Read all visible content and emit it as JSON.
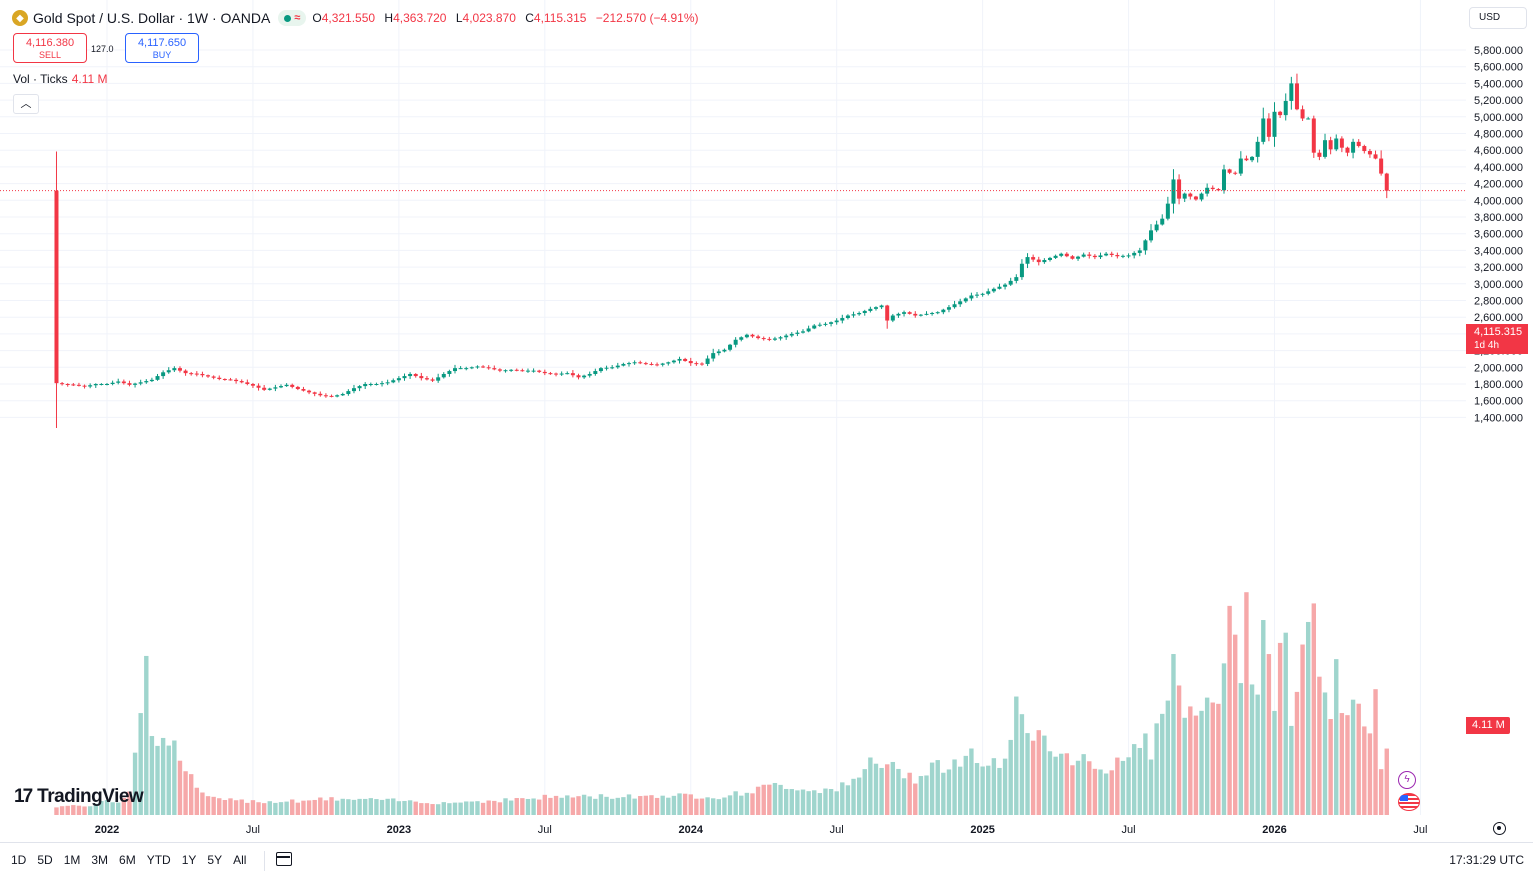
{
  "header": {
    "symbol": "Gold Spot / U.S. Dollar · 1W · OANDA",
    "logo_icon": "gold-coin-icon",
    "ohlc": [
      {
        "key": "O",
        "value": "4,321.550"
      },
      {
        "key": "H",
        "value": "4,363.720"
      },
      {
        "key": "L",
        "value": "4,023.870"
      },
      {
        "key": "C",
        "value": "4,115.315"
      }
    ],
    "change": "−212.570 (−4.91%)"
  },
  "trade": {
    "sell_price": "4,116.380",
    "sell_label": "SELL",
    "spread": "127.0",
    "buy_price": "4,117.650",
    "buy_label": "BUY"
  },
  "volume_legend": {
    "label": "Vol · Ticks",
    "value": "4.11 M"
  },
  "currency": "USD",
  "last_price": {
    "value": "4,115.315",
    "countdown": "1d 4h"
  },
  "last_volume": "4.11 M",
  "time_ranges": [
    "1D",
    "5D",
    "1M",
    "3M",
    "6M",
    "YTD",
    "1Y",
    "5Y",
    "All"
  ],
  "clock": "17:31:29 UTC",
  "brand": "TradingView",
  "colors": {
    "up": "#089981",
    "down": "#f23645",
    "vol_up": "#9fd5cd",
    "vol_down": "#f6a8a9"
  },
  "chart_data": {
    "type": "candlestick",
    "interval": "1W",
    "y_axis": {
      "ticks": [
        1400,
        1600,
        1800,
        2000,
        2200,
        2400,
        2600,
        2800,
        3000,
        3200,
        3400,
        3600,
        3800,
        4000,
        4200,
        4400,
        4600,
        4800,
        5000,
        5200,
        5400,
        5600,
        5800
      ],
      "labels": [
        "1,400.000",
        "1,600.000",
        "1,800.000",
        "2,000.000",
        "2,200.000",
        "2,400.000",
        "2,600.000",
        "2,800.000",
        "3,000.000",
        "3,200.000",
        "3,400.000",
        "3,600.000",
        "3,800.000",
        "4,000.000",
        "4,200.000",
        "4,400.000",
        "4,600.000",
        "4,800.000",
        "5,000.000",
        "5,200.000",
        "5,400.000",
        "5,600.000",
        "5,800.000"
      ]
    },
    "x_axis": {
      "labels": [
        "2022",
        "Jul",
        "2023",
        "Jul",
        "2024",
        "Jul",
        "2025",
        "Jul",
        "2026",
        "Jul"
      ],
      "label_weeks": [
        0,
        26,
        52,
        78,
        104,
        130,
        156,
        182,
        208,
        234
      ]
    },
    "first_week": "2022-01",
    "last_week": "2026-05",
    "anchors_close": [
      [
        -9,
        1810
      ],
      [
        -8,
        1800
      ],
      [
        -6,
        1790
      ],
      [
        -4,
        1770
      ],
      [
        -2,
        1800
      ],
      [
        0,
        1800
      ],
      [
        2,
        1830
      ],
      [
        4,
        1790
      ],
      [
        6,
        1820
      ],
      [
        8,
        1850
      ],
      [
        10,
        1940
      ],
      [
        12,
        1990
      ],
      [
        14,
        1930
      ],
      [
        16,
        1920
      ],
      [
        18,
        1890
      ],
      [
        20,
        1860
      ],
      [
        22,
        1850
      ],
      [
        24,
        1820
      ],
      [
        26,
        1780
      ],
      [
        28,
        1730
      ],
      [
        30,
        1760
      ],
      [
        32,
        1790
      ],
      [
        34,
        1740
      ],
      [
        36,
        1700
      ],
      [
        38,
        1665
      ],
      [
        40,
        1650
      ],
      [
        42,
        1680
      ],
      [
        44,
        1750
      ],
      [
        46,
        1800
      ],
      [
        48,
        1800
      ],
      [
        50,
        1820
      ],
      [
        52,
        1870
      ],
      [
        54,
        1920
      ],
      [
        56,
        1870
      ],
      [
        58,
        1840
      ],
      [
        60,
        1920
      ],
      [
        62,
        1990
      ],
      [
        64,
        1990
      ],
      [
        66,
        2010
      ],
      [
        68,
        1990
      ],
      [
        70,
        1960
      ],
      [
        72,
        1970
      ],
      [
        74,
        1960
      ],
      [
        76,
        1960
      ],
      [
        78,
        1930
      ],
      [
        80,
        1920
      ],
      [
        82,
        1930
      ],
      [
        84,
        1880
      ],
      [
        86,
        1920
      ],
      [
        88,
        1990
      ],
      [
        90,
        2000
      ],
      [
        92,
        2040
      ],
      [
        94,
        2060
      ],
      [
        96,
        2040
      ],
      [
        98,
        2030
      ],
      [
        100,
        2060
      ],
      [
        102,
        2100
      ],
      [
        104,
        2050
      ],
      [
        106,
        2040
      ],
      [
        108,
        2170
      ],
      [
        110,
        2210
      ],
      [
        112,
        2330
      ],
      [
        114,
        2390
      ],
      [
        116,
        2350
      ],
      [
        118,
        2330
      ],
      [
        120,
        2360
      ],
      [
        122,
        2400
      ],
      [
        124,
        2430
      ],
      [
        126,
        2500
      ],
      [
        128,
        2520
      ],
      [
        130,
        2560
      ],
      [
        132,
        2620
      ],
      [
        134,
        2650
      ],
      [
        136,
        2700
      ],
      [
        138,
        2740
      ],
      [
        139,
        2560
      ],
      [
        140,
        2620
      ],
      [
        142,
        2660
      ],
      [
        144,
        2620
      ],
      [
        146,
        2640
      ],
      [
        148,
        2660
      ],
      [
        150,
        2720
      ],
      [
        152,
        2790
      ],
      [
        154,
        2860
      ],
      [
        156,
        2880
      ],
      [
        158,
        2940
      ],
      [
        160,
        2990
      ],
      [
        162,
        3080
      ],
      [
        163,
        3240
      ],
      [
        164,
        3320
      ],
      [
        166,
        3260
      ],
      [
        168,
        3310
      ],
      [
        170,
        3360
      ],
      [
        172,
        3300
      ],
      [
        174,
        3350
      ],
      [
        176,
        3320
      ],
      [
        178,
        3360
      ],
      [
        180,
        3330
      ],
      [
        182,
        3340
      ],
      [
        184,
        3400
      ],
      [
        186,
        3640
      ],
      [
        188,
        3780
      ],
      [
        189,
        3960
      ],
      [
        190,
        4250
      ],
      [
        191,
        4020
      ],
      [
        192,
        4080
      ],
      [
        194,
        4010
      ],
      [
        196,
        4150
      ],
      [
        198,
        4120
      ],
      [
        199,
        4370
      ],
      [
        200,
        4330
      ],
      [
        201,
        4320
      ],
      [
        202,
        4500
      ],
      [
        203,
        4480
      ],
      [
        204,
        4520
      ],
      [
        205,
        4700
      ],
      [
        206,
        4980
      ],
      [
        207,
        4760
      ],
      [
        208,
        5060
      ],
      [
        209,
        5020
      ],
      [
        210,
        5190
      ],
      [
        211,
        5400
      ],
      [
        212,
        5090
      ],
      [
        213,
        4980
      ],
      [
        214,
        4980
      ],
      [
        215,
        4570
      ],
      [
        216,
        4520
      ],
      [
        217,
        4720
      ],
      [
        218,
        4610
      ],
      [
        219,
        4740
      ],
      [
        220,
        4630
      ],
      [
        221,
        4570
      ],
      [
        222,
        4700
      ],
      [
        223,
        4650
      ],
      [
        224,
        4590
      ],
      [
        225,
        4550
      ],
      [
        226,
        4500
      ],
      [
        227,
        4320
      ],
      [
        228,
        4115
      ]
    ],
    "volume_anchors": [
      [
        -9,
        70
      ],
      [
        -2,
        80
      ],
      [
        0,
        120
      ],
      [
        2,
        110
      ],
      [
        4,
        200
      ],
      [
        6,
        900
      ],
      [
        7,
        1200
      ],
      [
        8,
        700
      ],
      [
        10,
        600
      ],
      [
        12,
        550
      ],
      [
        14,
        400
      ],
      [
        16,
        200
      ],
      [
        20,
        120
      ],
      [
        30,
        110
      ],
      [
        40,
        130
      ],
      [
        50,
        120
      ],
      [
        60,
        100
      ],
      [
        70,
        120
      ],
      [
        80,
        150
      ],
      [
        90,
        150
      ],
      [
        100,
        160
      ],
      [
        110,
        150
      ],
      [
        115,
        200
      ],
      [
        120,
        250
      ],
      [
        125,
        200
      ],
      [
        130,
        220
      ],
      [
        134,
        280
      ],
      [
        136,
        450
      ],
      [
        140,
        380
      ],
      [
        144,
        300
      ],
      [
        148,
        450
      ],
      [
        150,
        350
      ],
      [
        152,
        460
      ],
      [
        154,
        500
      ],
      [
        156,
        420
      ],
      [
        160,
        400
      ],
      [
        162,
        880
      ],
      [
        164,
        620
      ],
      [
        166,
        780
      ],
      [
        168,
        560
      ],
      [
        170,
        500
      ],
      [
        172,
        450
      ],
      [
        174,
        480
      ],
      [
        176,
        420
      ],
      [
        178,
        380
      ],
      [
        180,
        420
      ],
      [
        182,
        440
      ],
      [
        184,
        640
      ],
      [
        186,
        520
      ],
      [
        188,
        900
      ],
      [
        190,
        1200
      ],
      [
        191,
        1000
      ],
      [
        192,
        880
      ],
      [
        193,
        840
      ],
      [
        194,
        780
      ],
      [
        196,
        950
      ],
      [
        198,
        1000
      ],
      [
        199,
        1200
      ],
      [
        200,
        1500
      ],
      [
        201,
        1400
      ],
      [
        202,
        1200
      ],
      [
        203,
        1650
      ],
      [
        204,
        1200
      ],
      [
        205,
        1000
      ],
      [
        206,
        1750
      ],
      [
        207,
        1200
      ],
      [
        208,
        800
      ],
      [
        209,
        1500
      ],
      [
        210,
        1300
      ],
      [
        211,
        800
      ],
      [
        212,
        1050
      ],
      [
        213,
        1250
      ],
      [
        214,
        1750
      ],
      [
        215,
        1650
      ],
      [
        216,
        1050
      ],
      [
        217,
        900
      ],
      [
        218,
        800
      ],
      [
        219,
        1150
      ],
      [
        220,
        820
      ],
      [
        221,
        720
      ],
      [
        222,
        960
      ],
      [
        223,
        920
      ],
      [
        224,
        740
      ],
      [
        225,
        620
      ],
      [
        226,
        930
      ],
      [
        227,
        420
      ],
      [
        228,
        630
      ]
    ],
    "crosshair_price": 4115.315
  }
}
